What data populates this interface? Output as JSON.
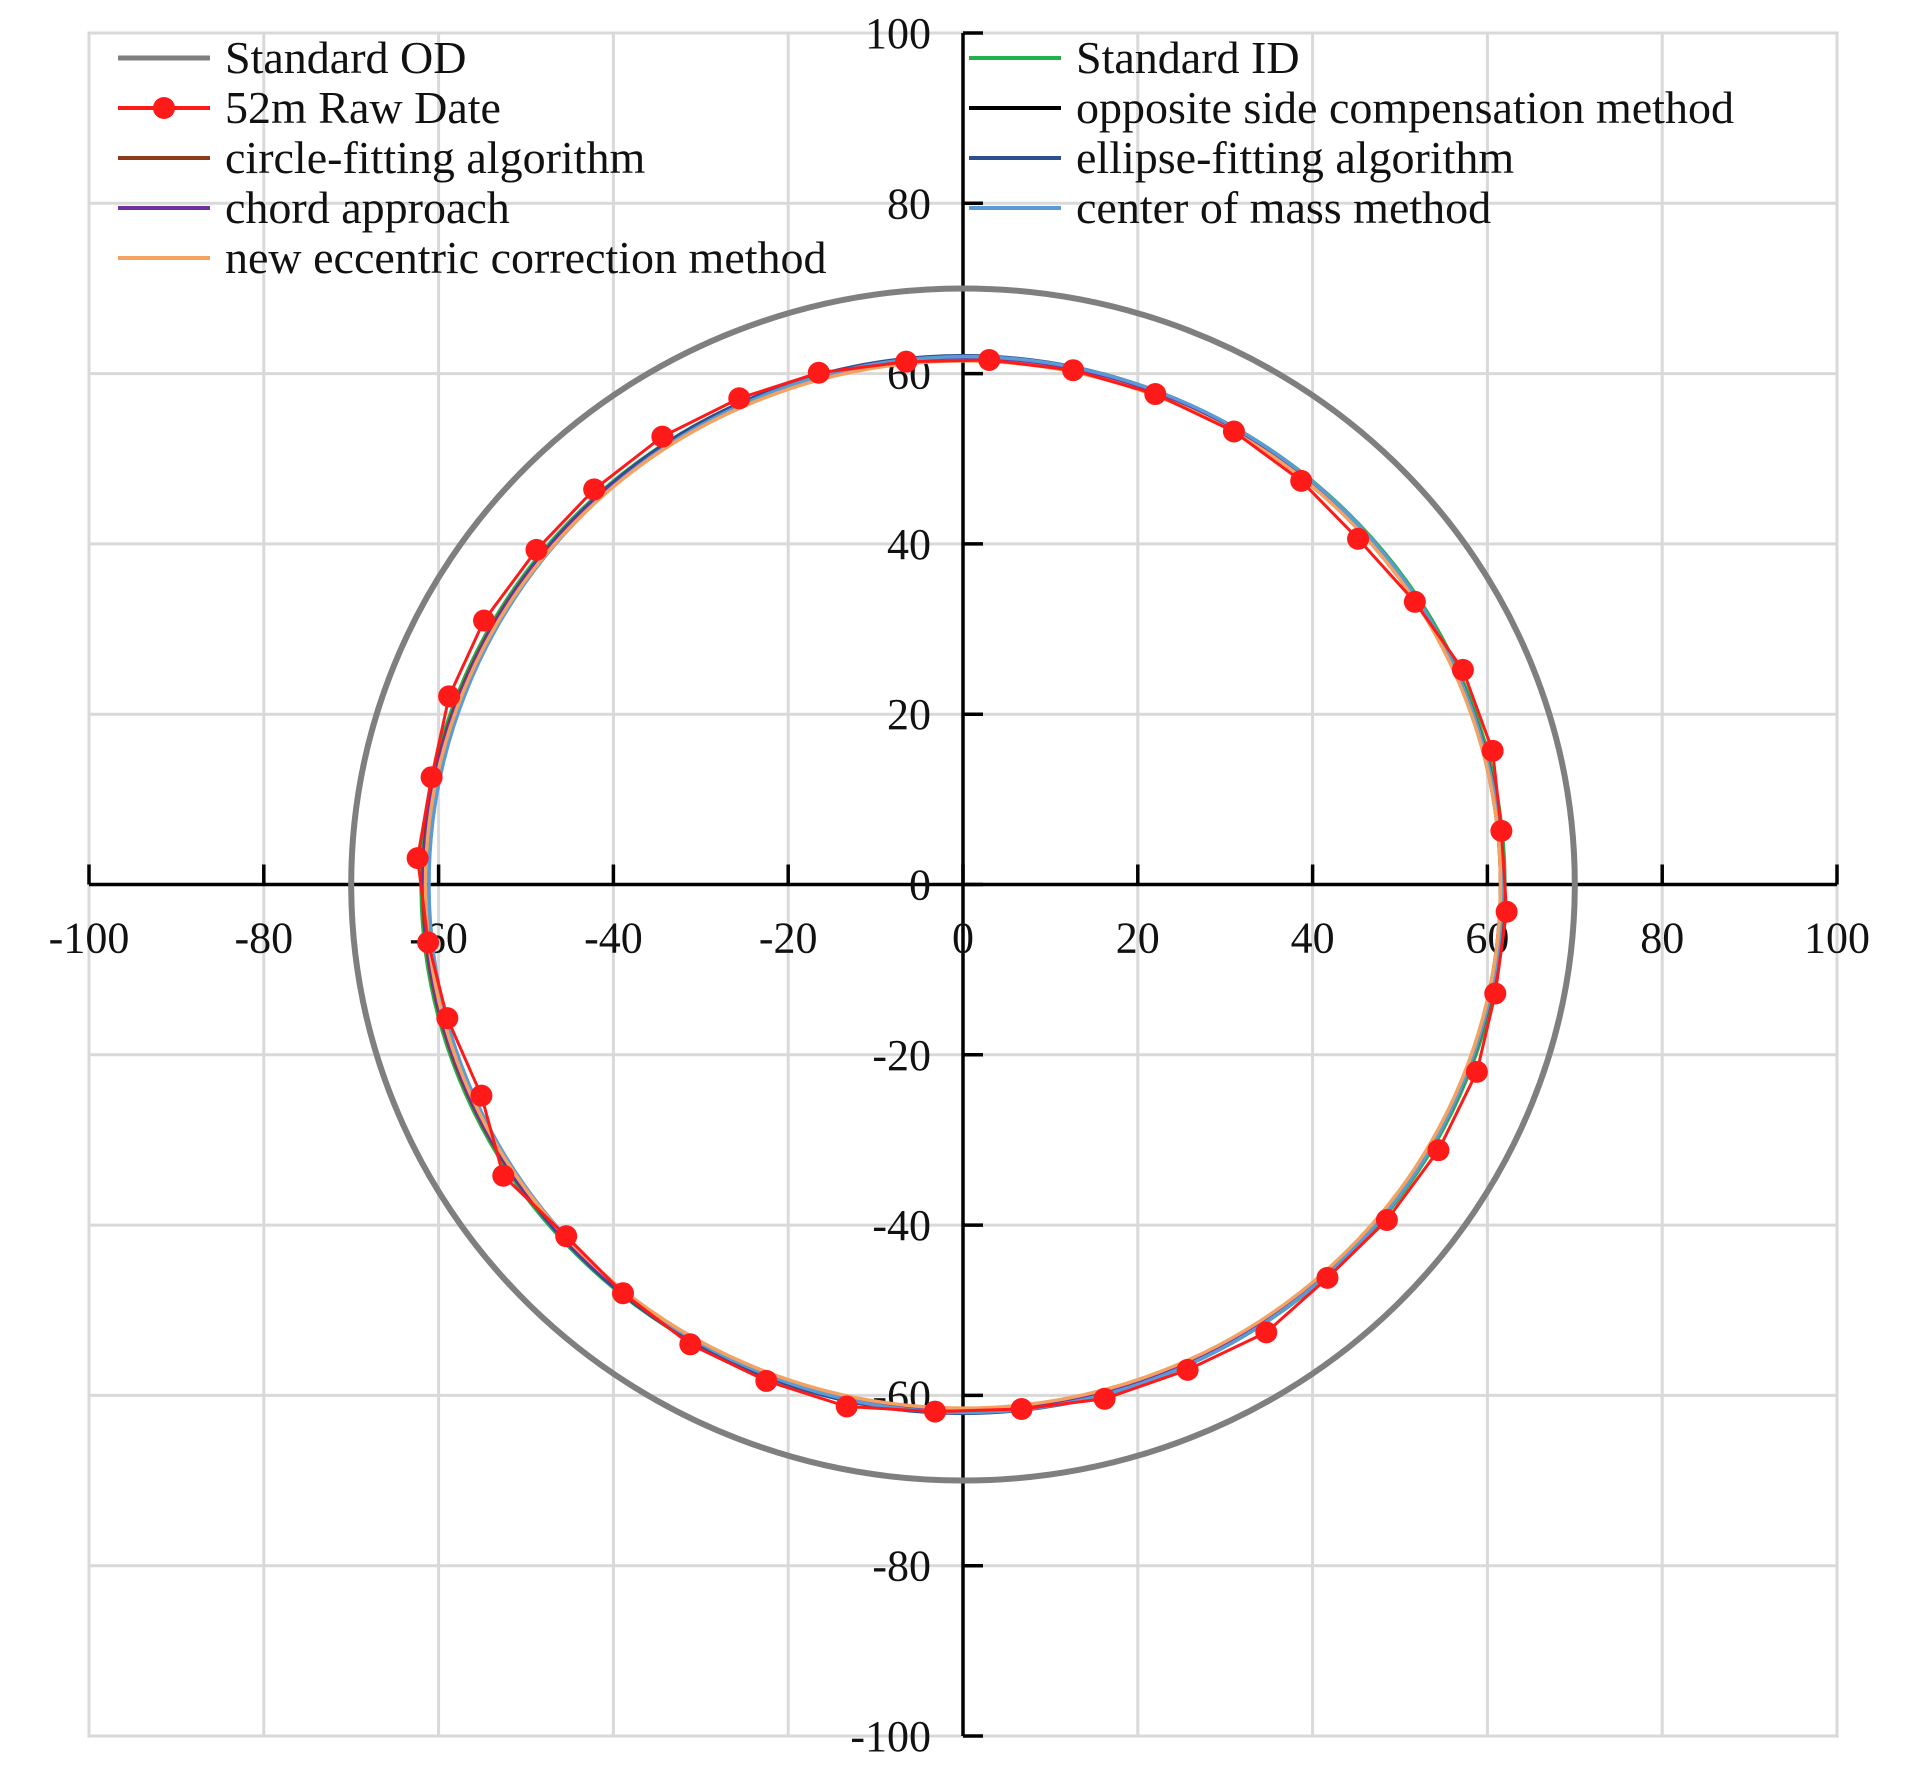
{
  "chart_data": {
    "type": "scatter",
    "title": "",
    "xlabel": "",
    "ylabel": "",
    "xlim": [
      -100,
      100
    ],
    "ylim": [
      -100,
      100
    ],
    "x_ticks": [
      -100,
      -80,
      -60,
      -40,
      -20,
      0,
      20,
      40,
      60,
      80,
      100
    ],
    "y_ticks": [
      100,
      80,
      60,
      40,
      20,
      0,
      -20,
      -40,
      -60,
      -80,
      -100
    ],
    "x_tick_labels": [
      "-100",
      "-80",
      "-60",
      "-40",
      "-20",
      "0",
      "20",
      "40",
      "60",
      "80",
      "100"
    ],
    "y_tick_labels": [
      "100",
      "80",
      "60",
      "40",
      "20",
      "0",
      "-20",
      "-40",
      "-60",
      "-80",
      "-100"
    ],
    "grid": true,
    "legend_position": "top",
    "series": [
      {
        "name": "Standard OD",
        "color": "#7f7f7f",
        "kind": "circle",
        "center": [
          0,
          0
        ],
        "radius": 70
      },
      {
        "name": "52m Raw Date",
        "color": "#ff1a1a",
        "kind": "markers",
        "points": [
          [
            3,
            61.6
          ],
          [
            12.6,
            60.4
          ],
          [
            22,
            57.6
          ],
          [
            31,
            53.2
          ],
          [
            38.7,
            47.4
          ],
          [
            45.2,
            40.6
          ],
          [
            51.7,
            33.2
          ],
          [
            57.2,
            25.2
          ],
          [
            60.6,
            15.7
          ],
          [
            61.6,
            6.3
          ],
          [
            62.2,
            -3.2
          ],
          [
            60.9,
            -12.8
          ],
          [
            58.8,
            -22
          ],
          [
            54.4,
            -31.2
          ],
          [
            48.5,
            -39.4
          ],
          [
            41.7,
            -46.2
          ],
          [
            34.7,
            -52.6
          ],
          [
            25.7,
            -57
          ],
          [
            16.2,
            -60.4
          ],
          [
            6.7,
            -61.6
          ],
          [
            -3.2,
            -61.9
          ],
          [
            -13.3,
            -61.3
          ],
          [
            -22.5,
            -58.3
          ],
          [
            -31.2,
            -54
          ],
          [
            -38.9,
            -48
          ],
          [
            -45.4,
            -41.3
          ],
          [
            -52.6,
            -34.2
          ],
          [
            -55.1,
            -24.8
          ],
          [
            -59,
            -15.7
          ],
          [
            -61.2,
            -6.8
          ],
          [
            -62.4,
            3.1
          ],
          [
            -60.8,
            12.6
          ],
          [
            -58.8,
            22.1
          ],
          [
            -54.8,
            31
          ],
          [
            -48.8,
            39.3
          ],
          [
            -42.2,
            46.4
          ],
          [
            -34.4,
            52.6
          ],
          [
            -25.6,
            57.1
          ],
          [
            -16.5,
            60.1
          ],
          [
            -6.5,
            61.4
          ]
        ]
      },
      {
        "name": "Standard ID",
        "color": "#22b14c",
        "kind": "circle",
        "center": [
          0,
          0
        ],
        "radius": 62
      },
      {
        "name": "opposite side compensation method",
        "color": "#000000",
        "kind": "ellipse",
        "center": [
          0,
          0
        ],
        "radius_x": 61.5,
        "radius_y": 61.8
      },
      {
        "name": "circle-fitting algorithm",
        "color": "#8b3a1a",
        "kind": "circle",
        "center": [
          0,
          0
        ],
        "radius": 61.8
      },
      {
        "name": "ellipse-fitting algorithm",
        "color": "#2e4f8f",
        "kind": "ellipse",
        "center": [
          0,
          0
        ],
        "radius_x": 61.6,
        "radius_y": 62.1
      },
      {
        "name": "chord approach",
        "color": "#7030a0",
        "kind": "circle",
        "center": [
          0,
          0
        ],
        "radius": 61.7
      },
      {
        "name": "center of mass method",
        "color": "#5b9bd5",
        "kind": "ellipse",
        "center": [
          0.3,
          0
        ],
        "radius_x": 61.4,
        "radius_y": 62.0
      },
      {
        "name": "new eccentric correction method",
        "color": "#f4a261",
        "kind": "circle",
        "center": [
          0,
          0
        ],
        "radius": 61.5
      }
    ]
  }
}
